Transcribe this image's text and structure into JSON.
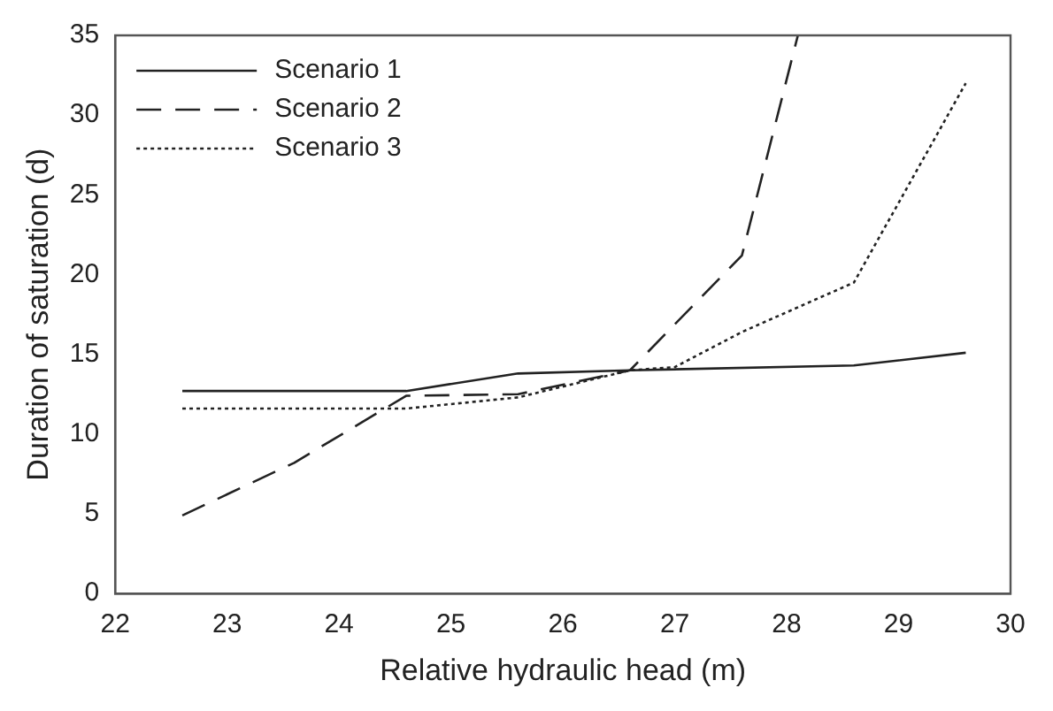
{
  "chart_data": {
    "type": "line",
    "xlabel": "Relative hydraulic head (m)",
    "ylabel": "Duration of saturation (d)",
    "xlim": [
      22,
      30
    ],
    "xticks": [
      22,
      23,
      24,
      25,
      26,
      27,
      28,
      29,
      30
    ],
    "ylim": [
      0,
      35
    ],
    "yticks": [
      0,
      5,
      10,
      15,
      20,
      25,
      30,
      35
    ],
    "grid": false,
    "legend": "top left",
    "marker": "none",
    "series": [
      {
        "name": "Scenario 1",
        "color": "#222222",
        "line_style": "solid",
        "x": [
          22.6,
          24.6,
          25.6,
          26.6,
          28.6,
          29.6
        ],
        "values": [
          12.7,
          12.7,
          13.8,
          14.0,
          14.3,
          15.1
        ]
      },
      {
        "name": "Scenario 2",
        "color": "#222222",
        "line_style": "dashed",
        "x": [
          22.6,
          23.6,
          24.6,
          25.6,
          26.6,
          27.6,
          28.1
        ],
        "values": [
          4.9,
          8.2,
          12.4,
          12.5,
          14.0,
          21.2,
          35
        ]
      },
      {
        "name": "Scenario 3",
        "color": "#222222",
        "line_style": "dotted",
        "x": [
          22.6,
          24.6,
          25.6,
          26.6,
          27.0,
          27.6,
          28.6,
          29.6
        ],
        "values": [
          11.6,
          11.6,
          12.3,
          14.0,
          14.2,
          16.4,
          19.5,
          32
        ]
      }
    ]
  }
}
